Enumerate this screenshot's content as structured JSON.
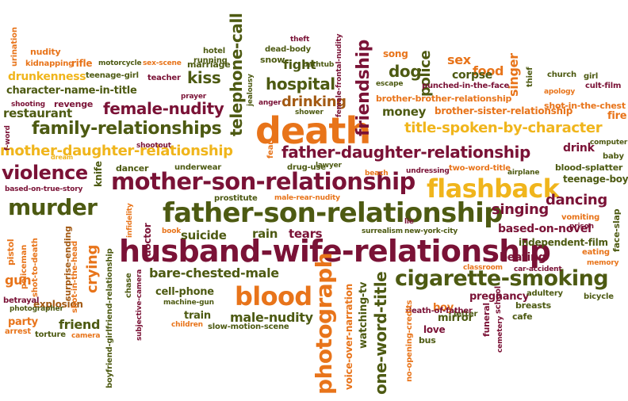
{
  "colors": {
    "maroon": "#7a1236",
    "olive": "#4d5a12",
    "orange": "#e8741a",
    "yellow": "#f0b51c",
    "brown": "#a35a14",
    "green": "#6f8a1f"
  },
  "words": [
    "death",
    "husband-wife-relationship",
    "father-son-relationship",
    "mother-son-relationship",
    "flashback",
    "blood",
    "murder",
    "cigarette-smoking",
    "photograph",
    "father-daughter-relationship",
    "family-relationships",
    "mother-daughter-relationship",
    "friendship",
    "telephone-call",
    "one-word-title",
    "violence",
    "female-nudity",
    "title-spoken-by-character",
    "hospital",
    "drinking",
    "dancing",
    "singing",
    "crying",
    "kiss",
    "dog",
    "fight",
    "friend",
    "bare-chested-male",
    "male-nudity",
    "suicide",
    "rain",
    "tears",
    "cell-phone",
    "restaurant",
    "character-name-in-title",
    "drunkenness",
    "police",
    "sex",
    "food",
    "singer",
    "money",
    "brother-brother-relationship",
    "brother-sister-relationship",
    "gun",
    "explosion",
    "party",
    "based-on-novel",
    "beating",
    "watching-tv",
    "voice-over-narration",
    "pregnancy",
    "boy",
    "train",
    "drink",
    "corpse",
    "song",
    "surprise-ending",
    "knife",
    "doctor",
    "based-on-true-story",
    "underwear",
    "dancer",
    "independent-film",
    "adultery",
    "mirror",
    "love",
    "bus",
    "cafe",
    "bicycle",
    "breasts",
    "funeral",
    "school",
    "cemetery",
    "letter",
    "death-of-father",
    "no-opening-credits",
    "shot-in-the-chest",
    "cult-film",
    "church",
    "girl",
    "thief",
    "apology",
    "fire",
    "computer",
    "baby",
    "teenage-boy",
    "blood-splatter",
    "airplane",
    "face-slap",
    "vomiting",
    "prison",
    "eating",
    "memory",
    "car-accident",
    "classroom",
    "new-york-city",
    "surrealism",
    "lie",
    "two-word-title",
    "undressing",
    "beach",
    "lawyer",
    "drug-use",
    "fear",
    "prostitute",
    "male-rear-nudity",
    "infidelity",
    "book",
    "shootout",
    "dream",
    "f-word",
    "shooting",
    "revenge",
    "teacher",
    "prayer",
    "marriage",
    "running",
    "hotel",
    "motorcycle",
    "sex-scene",
    "rifle",
    "kidnapping",
    "teenage-girl",
    "nudity",
    "urination",
    "dead-body",
    "bathtub",
    "theft",
    "snow",
    "jealousy",
    "anger",
    "shower",
    "escape",
    "punched-in-the-face",
    "female-frontal-nudity",
    "policeman",
    "pistol",
    "shot-to-death",
    "shot-in-the-head",
    "boyfriend-girlfriend-relationship",
    "chase",
    "subjective-camera",
    "betrayal",
    "photographer",
    "arrest",
    "torture",
    "camera",
    "children",
    "slow-motion-scene",
    "machine-gun"
  ]
}
